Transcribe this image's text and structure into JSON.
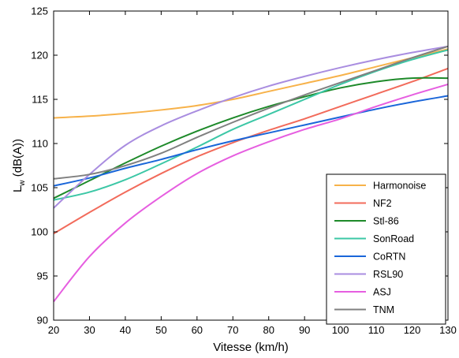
{
  "chart_data": {
    "type": "line",
    "xlabel": "Vitesse (km/h)",
    "ylabel_main": "L",
    "ylabel_sub": "w",
    "ylabel_rest": " (dB(A))",
    "xlim": [
      20,
      130
    ],
    "ylim": [
      90,
      125
    ],
    "xticks": [
      20,
      30,
      40,
      50,
      60,
      70,
      80,
      90,
      100,
      110,
      120,
      130
    ],
    "yticks": [
      90,
      95,
      100,
      105,
      110,
      115,
      120,
      125
    ],
    "grid": false,
    "legend_position": "bottom-right",
    "x": [
      20,
      30,
      40,
      50,
      60,
      70,
      80,
      90,
      100,
      110,
      120,
      130
    ],
    "series": [
      {
        "name": "Harmonoise",
        "color": "#f7b24a",
        "values": [
          112.9,
          113.1,
          113.4,
          113.8,
          114.3,
          115.0,
          115.9,
          116.8,
          117.7,
          118.7,
          119.7,
          120.7
        ]
      },
      {
        "name": "NF2",
        "color": "#f26b5b",
        "values": [
          99.8,
          102.2,
          104.5,
          106.6,
          108.5,
          110.1,
          111.5,
          112.8,
          114.2,
          115.6,
          117.0,
          118.5
        ]
      },
      {
        "name": "Stl-86",
        "color": "#1e8a2a",
        "values": [
          103.8,
          105.8,
          107.8,
          109.7,
          111.4,
          112.9,
          114.2,
          115.3,
          116.3,
          117.0,
          117.4,
          117.4
        ]
      },
      {
        "name": "SonRoad",
        "color": "#3cc7a6",
        "values": [
          103.6,
          104.5,
          105.9,
          107.7,
          109.6,
          111.6,
          113.3,
          115.0,
          116.7,
          118.2,
          119.5,
          120.6
        ]
      },
      {
        "name": "CoRTN",
        "color": "#1a66d9",
        "values": [
          105.2,
          106.1,
          107.2,
          108.2,
          109.3,
          110.3,
          111.2,
          112.1,
          113.0,
          113.9,
          114.7,
          115.4
        ]
      },
      {
        "name": "RSL90",
        "color": "#a98de0",
        "values": [
          102.7,
          106.5,
          109.8,
          112.0,
          113.7,
          115.2,
          116.5,
          117.6,
          118.6,
          119.5,
          120.3,
          121.0
        ]
      },
      {
        "name": "ASJ",
        "color": "#e65ee0",
        "values": [
          92.1,
          97.2,
          101.0,
          104.0,
          106.6,
          108.6,
          110.2,
          111.6,
          112.8,
          114.2,
          115.5,
          116.7
        ]
      },
      {
        "name": "TNM",
        "color": "#808080",
        "values": [
          106.0,
          106.5,
          107.5,
          108.9,
          110.7,
          112.4,
          114.0,
          115.5,
          116.9,
          118.3,
          119.7,
          121.0
        ]
      }
    ]
  }
}
